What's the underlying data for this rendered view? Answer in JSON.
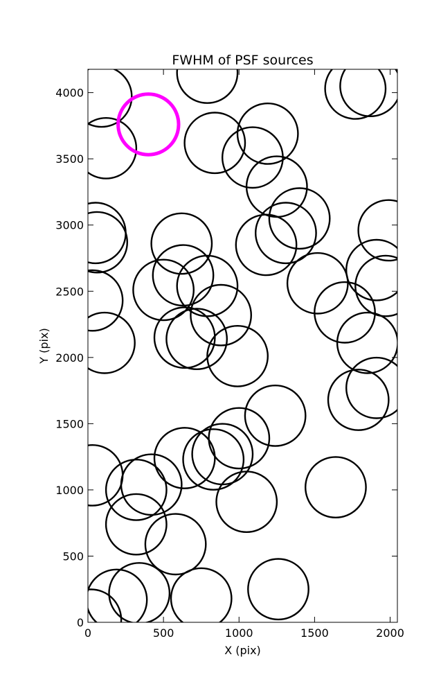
{
  "chart_data": {
    "type": "scatter",
    "title": "FWHM of PSF sources",
    "xlabel": "X (pix)",
    "ylabel": "Y (pix)",
    "xlim": [
      0,
      2048
    ],
    "ylim": [
      0,
      4176
    ],
    "xticks": [
      0,
      500,
      1000,
      1500,
      2000
    ],
    "yticks": [
      0,
      500,
      1000,
      1500,
      2000,
      2500,
      3000,
      3500,
      4000
    ],
    "grid": false,
    "marker": "circle",
    "radius_units": 200,
    "colors": {
      "source": "#000000",
      "highlight": "#ff00ff"
    },
    "series": [
      {
        "name": "",
        "color": "#000000",
        "points": [
          [
            90,
            3970
          ],
          [
            120,
            3580
          ],
          [
            790,
            4150
          ],
          [
            1770,
            4030
          ],
          [
            1870,
            4050
          ],
          [
            840,
            3620
          ],
          [
            1190,
            3690
          ],
          [
            1090,
            3510
          ],
          [
            1250,
            3290
          ],
          [
            1400,
            3050
          ],
          [
            1310,
            2940
          ],
          [
            1180,
            2850
          ],
          [
            1990,
            2960
          ],
          [
            1910,
            2660
          ],
          [
            50,
            2940
          ],
          [
            60,
            2870
          ],
          [
            620,
            2860
          ],
          [
            630,
            2620
          ],
          [
            790,
            2540
          ],
          [
            500,
            2510
          ],
          [
            1520,
            2560
          ],
          [
            1970,
            2540
          ],
          [
            30,
            2430
          ],
          [
            880,
            2320
          ],
          [
            1700,
            2340
          ],
          [
            110,
            2110
          ],
          [
            640,
            2150
          ],
          [
            720,
            2140
          ],
          [
            990,
            2010
          ],
          [
            1850,
            2110
          ],
          [
            1790,
            1680
          ],
          [
            1910,
            1770
          ],
          [
            1240,
            1560
          ],
          [
            1000,
            1390
          ],
          [
            890,
            1270
          ],
          [
            830,
            1230
          ],
          [
            640,
            1240
          ],
          [
            420,
            1040
          ],
          [
            320,
            1000
          ],
          [
            30,
            1110
          ],
          [
            1640,
            1020
          ],
          [
            1050,
            910
          ],
          [
            320,
            740
          ],
          [
            580,
            590
          ],
          [
            190,
            170
          ],
          [
            340,
            220
          ],
          [
            750,
            180
          ],
          [
            1260,
            250
          ],
          [
            20,
            20
          ]
        ]
      },
      {
        "name": "",
        "color": "#ff00ff",
        "points": [
          [
            400,
            3760
          ]
        ]
      }
    ]
  }
}
